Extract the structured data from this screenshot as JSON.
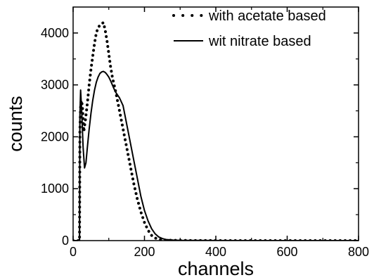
{
  "chart_data": {
    "type": "line",
    "xlabel": "channels",
    "ylabel": "counts",
    "xlim": [
      0,
      800
    ],
    "ylim": [
      0,
      4500
    ],
    "xticks": [
      0,
      200,
      400,
      600,
      800
    ],
    "yticks": [
      0,
      1000,
      2000,
      3000,
      4000
    ],
    "grid": false,
    "legend_position": "top-right",
    "series": [
      {
        "name": "with acetate based",
        "style": "dotted",
        "color": "#000000",
        "x": [
          0,
          18,
          19,
          21,
          23,
          26,
          30,
          35,
          40,
          45,
          50,
          55,
          60,
          65,
          70,
          75,
          80,
          85,
          90,
          95,
          100,
          105,
          110,
          115,
          120,
          130,
          140,
          150,
          160,
          170,
          180,
          190,
          200,
          210,
          220,
          230,
          240,
          250,
          260,
          280,
          300,
          350,
          400,
          500,
          600,
          700,
          800
        ],
        "y": [
          0,
          0,
          2100,
          2600,
          2700,
          2600,
          2100,
          2350,
          2650,
          3000,
          3300,
          3550,
          3800,
          4000,
          4100,
          4150,
          4180,
          4200,
          4050,
          3850,
          3600,
          3350,
          3150,
          3000,
          2850,
          2500,
          2150,
          1800,
          1450,
          1100,
          800,
          550,
          350,
          200,
          100,
          50,
          25,
          15,
          8,
          5,
          3,
          2,
          1,
          0,
          0,
          0,
          0
        ]
      },
      {
        "name": "wit nitrate based",
        "style": "solid",
        "color": "#000000",
        "x": [
          0,
          18,
          19,
          21,
          24,
          28,
          32,
          36,
          40,
          45,
          50,
          55,
          60,
          65,
          70,
          75,
          80,
          85,
          90,
          95,
          100,
          105,
          110,
          115,
          120,
          130,
          140,
          150,
          160,
          170,
          180,
          190,
          200,
          210,
          220,
          230,
          240,
          250,
          260,
          280,
          300,
          350,
          400,
          500,
          600,
          700,
          800
        ],
        "y": [
          0,
          0,
          2400,
          2900,
          2500,
          1800,
          1400,
          1500,
          1800,
          2150,
          2450,
          2700,
          2900,
          3050,
          3150,
          3220,
          3250,
          3260,
          3240,
          3200,
          3150,
          3080,
          3000,
          2920,
          2850,
          2750,
          2600,
          2250,
          1900,
          1550,
          1200,
          850,
          580,
          380,
          230,
          130,
          70,
          40,
          20,
          10,
          5,
          3,
          1,
          0,
          0,
          0,
          0
        ]
      }
    ]
  }
}
